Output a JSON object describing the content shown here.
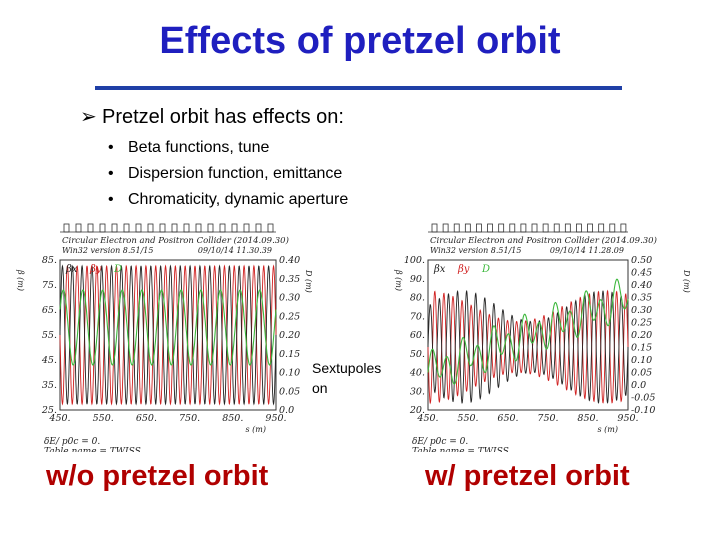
{
  "slide": {
    "title": "Effects of pretzel orbit",
    "main_bullet": "Pretzel orbit has effects on:",
    "sub_bullets": [
      "Beta functions, tune",
      "Dispersion function, emittance",
      "Chromaticity, dynamic aperture"
    ],
    "annotation_line1": "Sextupoles",
    "annotation_line2": "on",
    "caption_left": "w/o pretzel orbit",
    "caption_right": "w/ pretzel orbit"
  },
  "chart_data": [
    {
      "type": "line",
      "header": "Circular Electron and Positron Collider (2014.09.30)",
      "version": "Win32 version 8.51/15",
      "timestamp": "09/10/14  11.30.39",
      "xlabel": "s (m)",
      "ylabel_left": "β (m)",
      "ylabel_right": "D (m)",
      "x_ticks": [
        "450.",
        "550.",
        "650.",
        "750.",
        "850.",
        "950."
      ],
      "y_left_ticks": [
        "25.",
        "35.",
        "45.",
        "55.",
        "65.",
        "75.",
        "85."
      ],
      "y_right_ticks": [
        "0.0",
        "0.05",
        "0.10",
        "0.15",
        "0.20",
        "0.25",
        "0.30",
        "0.35",
        "0.40"
      ],
      "xlim": [
        450,
        950
      ],
      "ylim_left": [
        25,
        85
      ],
      "ylim_right": [
        0.0,
        0.4
      ],
      "legend": [
        "βx",
        "βy",
        "D"
      ],
      "footer1": "δE/ p0c = 0.",
      "footer2": "Table name = TWISS",
      "colors": {
        "beta_x": "#222222",
        "beta_y": "#d02020",
        "disp": "#3cb83c"
      }
    },
    {
      "type": "line",
      "header": "Circular Electron and Positron Collider (2014.09.30)",
      "version": "Win32 version 8.51/15",
      "timestamp": "09/10/14  11.28.09",
      "xlabel": "s (m)",
      "ylabel_left": "β (m)",
      "ylabel_right": "D (m)",
      "x_ticks": [
        "450.",
        "550.",
        "650.",
        "750.",
        "850.",
        "950."
      ],
      "y_left_ticks": [
        "20.",
        "30.",
        "40.",
        "50.",
        "60.",
        "70.",
        "80.",
        "90.",
        "100."
      ],
      "y_right_ticks": [
        "-0.10",
        "-0.05",
        "0.0",
        "0.05",
        "0.10",
        "0.15",
        "0.20",
        "0.25",
        "0.30",
        "0.35",
        "0.40",
        "0.45",
        "0.50"
      ],
      "xlim": [
        450,
        950
      ],
      "ylim_left": [
        20,
        100
      ],
      "ylim_right": [
        -0.1,
        0.5
      ],
      "legend": [
        "βx",
        "βy",
        "D"
      ],
      "footer1": "δE/ p0c = 0.",
      "footer2": "Table name = TWISS",
      "colors": {
        "beta_x": "#222222",
        "beta_y": "#d02020",
        "disp": "#3cb83c"
      }
    }
  ]
}
